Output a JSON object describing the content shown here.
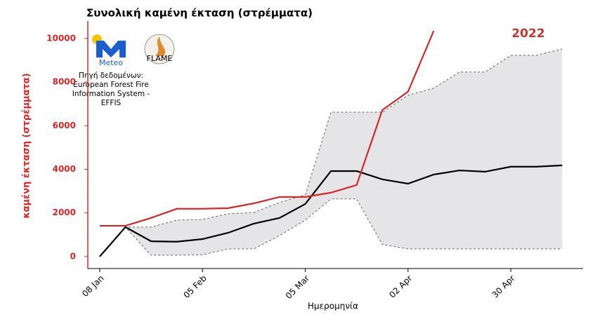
{
  "chart_data": {
    "type": "line",
    "title": "Συνολική καμένη έκταση (στρέμματα)",
    "x_label": "Ημερομηνία",
    "y_label": "καμένη έκταση (στρέμματα)",
    "categories": [
      "08 Jan",
      null,
      null,
      null,
      "05 Feb",
      null,
      null,
      null,
      "05 Mar",
      null,
      null,
      null,
      "02 Apr",
      null,
      null,
      null,
      "30 Apr",
      null,
      null
    ],
    "series": [
      {
        "name": "2022",
        "color": "#d62728",
        "values": [
          1410,
          1410,
          1770,
          2190,
          2190,
          2220,
          2440,
          2730,
          2730,
          2930,
          3280,
          6720,
          7560,
          10350,
          null,
          null,
          null,
          null,
          null
        ]
      },
      {
        "color": "#000000",
        "values": [
          0,
          1350,
          700,
          680,
          800,
          1090,
          1510,
          1770,
          2410,
          3920,
          3920,
          3540,
          3340,
          3760,
          3950,
          3890,
          4120,
          4120,
          4180
        ]
      }
    ],
    "band": {
      "color": "#e5e4e6",
      "upper": [
        0,
        1350,
        1350,
        1670,
        1700,
        1960,
        2020,
        2480,
        2830,
        6620,
        6620,
        6620,
        7400,
        7720,
        8460,
        8460,
        9230,
        9230,
        9520
      ],
      "lower": [
        0,
        1350,
        60,
        60,
        80,
        350,
        350,
        960,
        1670,
        2640,
        2640,
        550,
        350,
        350,
        350,
        350,
        350,
        350,
        350
      ]
    },
    "ylim": [
      -550,
      10800
    ],
    "yticks": [
      0,
      2000,
      4000,
      6000,
      8000,
      10000
    ],
    "axis_color": "#d62728",
    "logos": {
      "meteo": "Meteo",
      "flame": "FLAME"
    },
    "source": [
      "Πηγή δεδομένων:",
      "European Forest Fire",
      "Information System -",
      "EFFIS"
    ]
  }
}
